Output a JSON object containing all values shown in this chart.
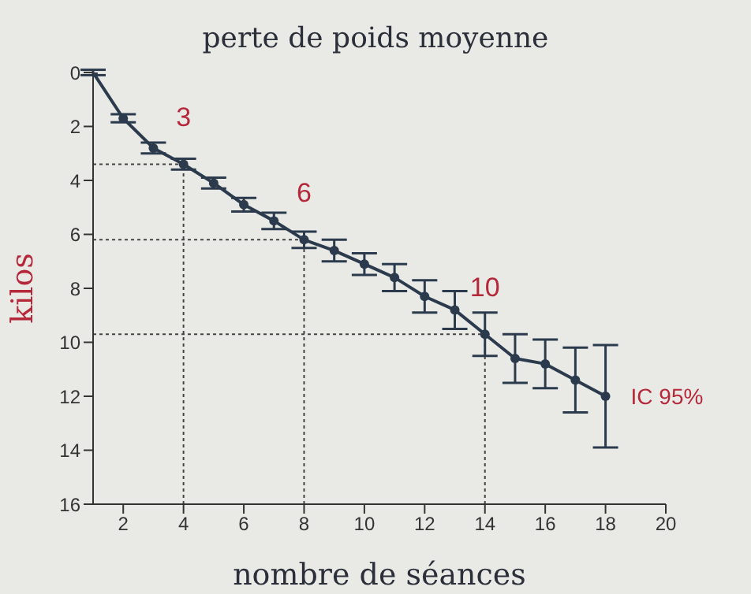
{
  "chart_data": {
    "type": "line",
    "title": "perte de poids moyenne",
    "xlabel": "nombre de séances",
    "ylabel": "kilos",
    "x": [
      1,
      2,
      3,
      4,
      5,
      6,
      7,
      8,
      9,
      10,
      11,
      12,
      13,
      14,
      15,
      16,
      17,
      18
    ],
    "series": [
      {
        "color": "#2b3a4c",
        "values": [
          0,
          1.7,
          2.8,
          3.4,
          4.1,
          4.9,
          5.5,
          6.2,
          6.6,
          7.1,
          7.6,
          8.3,
          8.8,
          9.7,
          10.6,
          10.8,
          11.4,
          12.0
        ],
        "errors": [
          0.1,
          0.15,
          0.2,
          0.2,
          0.2,
          0.25,
          0.3,
          0.3,
          0.4,
          0.4,
          0.5,
          0.6,
          0.7,
          0.8,
          0.9,
          0.9,
          1.2,
          1.9
        ]
      }
    ],
    "xlim": [
      1,
      20
    ],
    "xticks": [
      2,
      4,
      6,
      8,
      10,
      12,
      14,
      16,
      18,
      20
    ],
    "ylim": [
      16,
      0
    ],
    "yticks": [
      0,
      2,
      4,
      6,
      8,
      10,
      12,
      14,
      16
    ],
    "grid": false,
    "legend": false,
    "marker": "circle",
    "line_style": "solid",
    "ref_lines": [
      {
        "axis": "x",
        "value": 4,
        "line_style": "dotted"
      },
      {
        "axis": "x",
        "value": 8,
        "line_style": "dotted"
      },
      {
        "axis": "x",
        "value": 14,
        "line_style": "dotted"
      },
      {
        "axis": "y",
        "value": 3.4,
        "line_style": "dotted"
      },
      {
        "axis": "y",
        "value": 6.2,
        "line_style": "dotted"
      },
      {
        "axis": "y",
        "value": 9.7,
        "line_style": "dotted"
      }
    ],
    "annotations": [
      {
        "text": "3",
        "x": 4,
        "y": 3.4
      },
      {
        "text": "6",
        "x": 8,
        "y": 6.2
      },
      {
        "text": "10",
        "x": 14,
        "y": 9.7
      },
      {
        "text": "IC 95%",
        "x": 18,
        "y": 12
      }
    ]
  }
}
